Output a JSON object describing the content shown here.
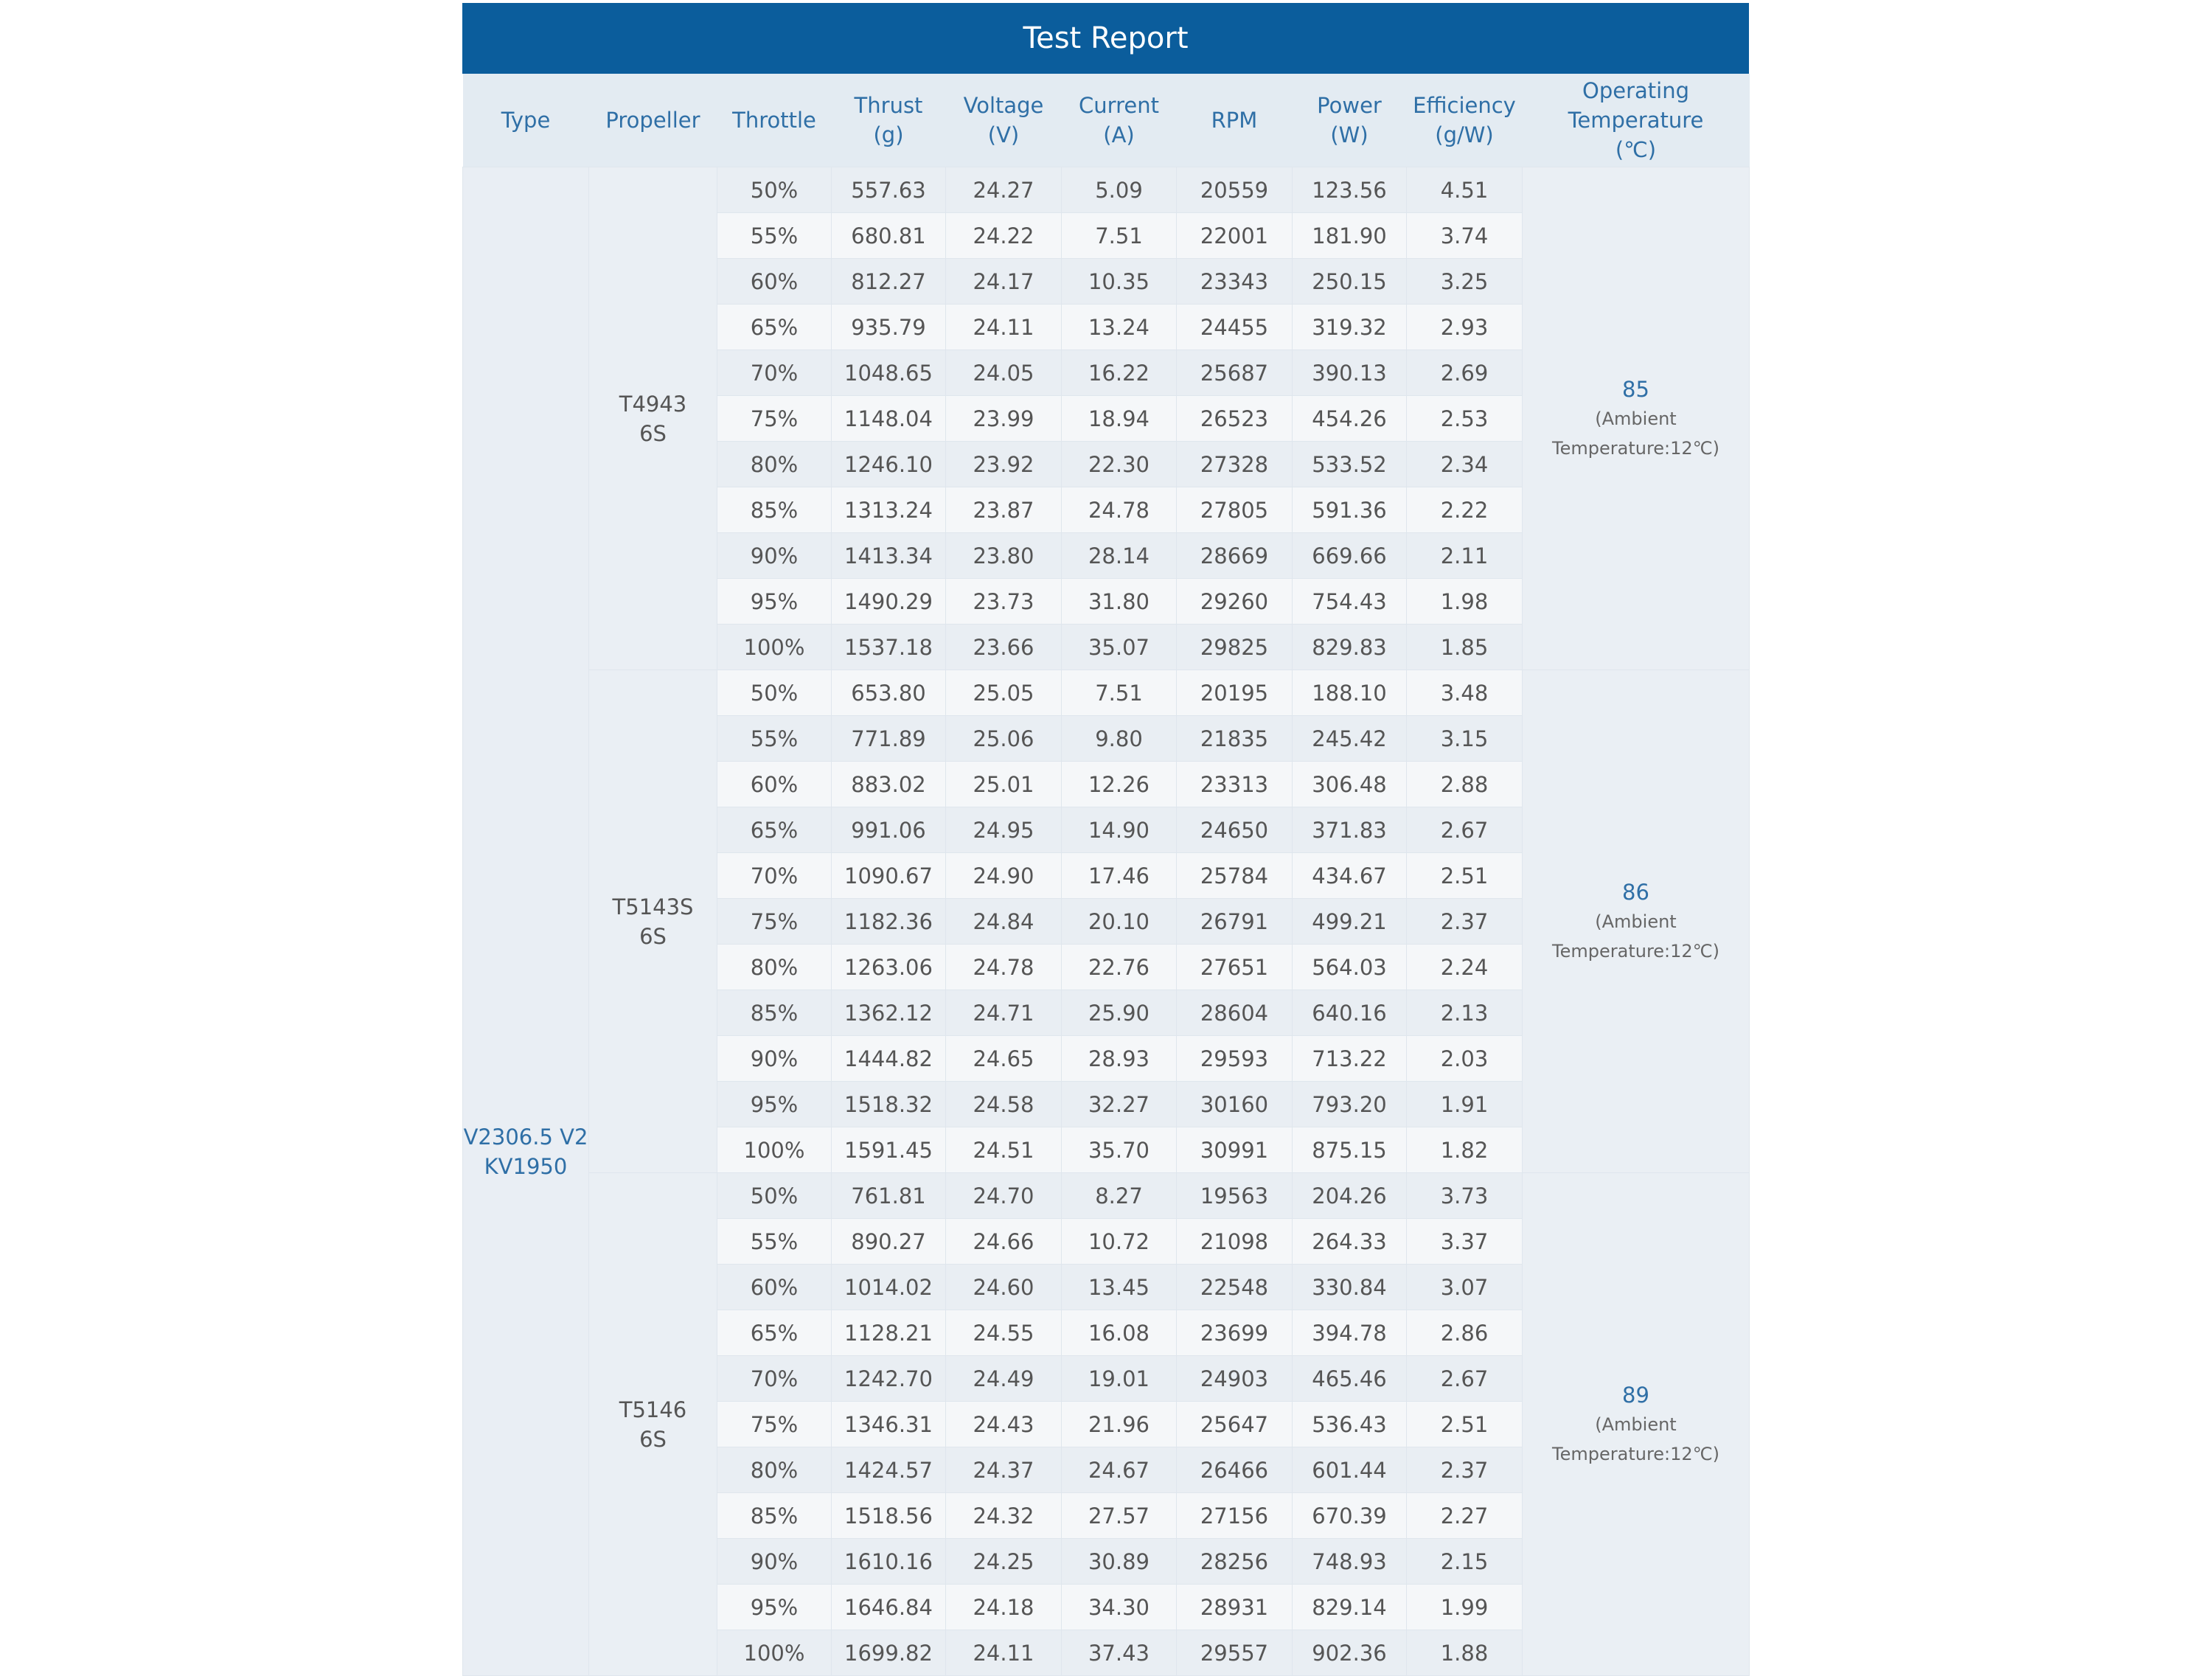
{
  "header": {
    "title": "Test Report"
  },
  "table": {
    "columns": [
      [
        "Type"
      ],
      [
        "Propeller"
      ],
      [
        "Throttle"
      ],
      [
        "Thrust",
        "(g)"
      ],
      [
        "Voltage",
        "(V)"
      ],
      [
        "Current",
        "(A)"
      ],
      [
        "RPM"
      ],
      [
        "Power",
        "(W)"
      ],
      [
        "Efficiency",
        "(g/W)"
      ],
      [
        "Operating",
        "Temperature",
        "(℃)"
      ]
    ],
    "type": [
      "V2306.5 V2",
      "KV1950"
    ],
    "groups": [
      {
        "propeller": [
          "T4943",
          "6S"
        ],
        "temperature": {
          "value": "85",
          "note": [
            "(Ambient",
            "Temperature:12℃)"
          ]
        },
        "rows": [
          [
            "50%",
            "557.63",
            "24.27",
            "5.09",
            "20559",
            "123.56",
            "4.51"
          ],
          [
            "55%",
            "680.81",
            "24.22",
            "7.51",
            "22001",
            "181.90",
            "3.74"
          ],
          [
            "60%",
            "812.27",
            "24.17",
            "10.35",
            "23343",
            "250.15",
            "3.25"
          ],
          [
            "65%",
            "935.79",
            "24.11",
            "13.24",
            "24455",
            "319.32",
            "2.93"
          ],
          [
            "70%",
            "1048.65",
            "24.05",
            "16.22",
            "25687",
            "390.13",
            "2.69"
          ],
          [
            "75%",
            "1148.04",
            "23.99",
            "18.94",
            "26523",
            "454.26",
            "2.53"
          ],
          [
            "80%",
            "1246.10",
            "23.92",
            "22.30",
            "27328",
            "533.52",
            "2.34"
          ],
          [
            "85%",
            "1313.24",
            "23.87",
            "24.78",
            "27805",
            "591.36",
            "2.22"
          ],
          [
            "90%",
            "1413.34",
            "23.80",
            "28.14",
            "28669",
            "669.66",
            "2.11"
          ],
          [
            "95%",
            "1490.29",
            "23.73",
            "31.80",
            "29260",
            "754.43",
            "1.98"
          ],
          [
            "100%",
            "1537.18",
            "23.66",
            "35.07",
            "29825",
            "829.83",
            "1.85"
          ]
        ]
      },
      {
        "propeller": [
          "T5143S",
          "6S"
        ],
        "temperature": {
          "value": "86",
          "note": [
            "(Ambient",
            "Temperature:12℃)"
          ]
        },
        "rows": [
          [
            "50%",
            "653.80",
            "25.05",
            "7.51",
            "20195",
            "188.10",
            "3.48"
          ],
          [
            "55%",
            "771.89",
            "25.06",
            "9.80",
            "21835",
            "245.42",
            "3.15"
          ],
          [
            "60%",
            "883.02",
            "25.01",
            "12.26",
            "23313",
            "306.48",
            "2.88"
          ],
          [
            "65%",
            "991.06",
            "24.95",
            "14.90",
            "24650",
            "371.83",
            "2.67"
          ],
          [
            "70%",
            "1090.67",
            "24.90",
            "17.46",
            "25784",
            "434.67",
            "2.51"
          ],
          [
            "75%",
            "1182.36",
            "24.84",
            "20.10",
            "26791",
            "499.21",
            "2.37"
          ],
          [
            "80%",
            "1263.06",
            "24.78",
            "22.76",
            "27651",
            "564.03",
            "2.24"
          ],
          [
            "85%",
            "1362.12",
            "24.71",
            "25.90",
            "28604",
            "640.16",
            "2.13"
          ],
          [
            "90%",
            "1444.82",
            "24.65",
            "28.93",
            "29593",
            "713.22",
            "2.03"
          ],
          [
            "95%",
            "1518.32",
            "24.58",
            "32.27",
            "30160",
            "793.20",
            "1.91"
          ],
          [
            "100%",
            "1591.45",
            "24.51",
            "35.70",
            "30991",
            "875.15",
            "1.82"
          ]
        ]
      },
      {
        "propeller": [
          "T5146",
          "6S"
        ],
        "temperature": {
          "value": "89",
          "note": [
            "(Ambient",
            "Temperature:12℃)"
          ]
        },
        "rows": [
          [
            "50%",
            "761.81",
            "24.70",
            "8.27",
            "19563",
            "204.26",
            "3.73"
          ],
          [
            "55%",
            "890.27",
            "24.66",
            "10.72",
            "21098",
            "264.33",
            "3.37"
          ],
          [
            "60%",
            "1014.02",
            "24.60",
            "13.45",
            "22548",
            "330.84",
            "3.07"
          ],
          [
            "65%",
            "1128.21",
            "24.55",
            "16.08",
            "23699",
            "394.78",
            "2.86"
          ],
          [
            "70%",
            "1242.70",
            "24.49",
            "19.01",
            "24903",
            "465.46",
            "2.67"
          ],
          [
            "75%",
            "1346.31",
            "24.43",
            "21.96",
            "25647",
            "536.43",
            "2.51"
          ],
          [
            "80%",
            "1424.57",
            "24.37",
            "24.67",
            "26466",
            "601.44",
            "2.37"
          ],
          [
            "85%",
            "1518.56",
            "24.32",
            "27.57",
            "27156",
            "670.39",
            "2.27"
          ],
          [
            "90%",
            "1610.16",
            "24.25",
            "30.89",
            "28256",
            "748.93",
            "2.15"
          ],
          [
            "95%",
            "1646.84",
            "24.18",
            "34.30",
            "28931",
            "829.14",
            "1.99"
          ],
          [
            "100%",
            "1699.82",
            "24.11",
            "37.43",
            "29557",
            "902.36",
            "1.88"
          ]
        ]
      }
    ]
  }
}
